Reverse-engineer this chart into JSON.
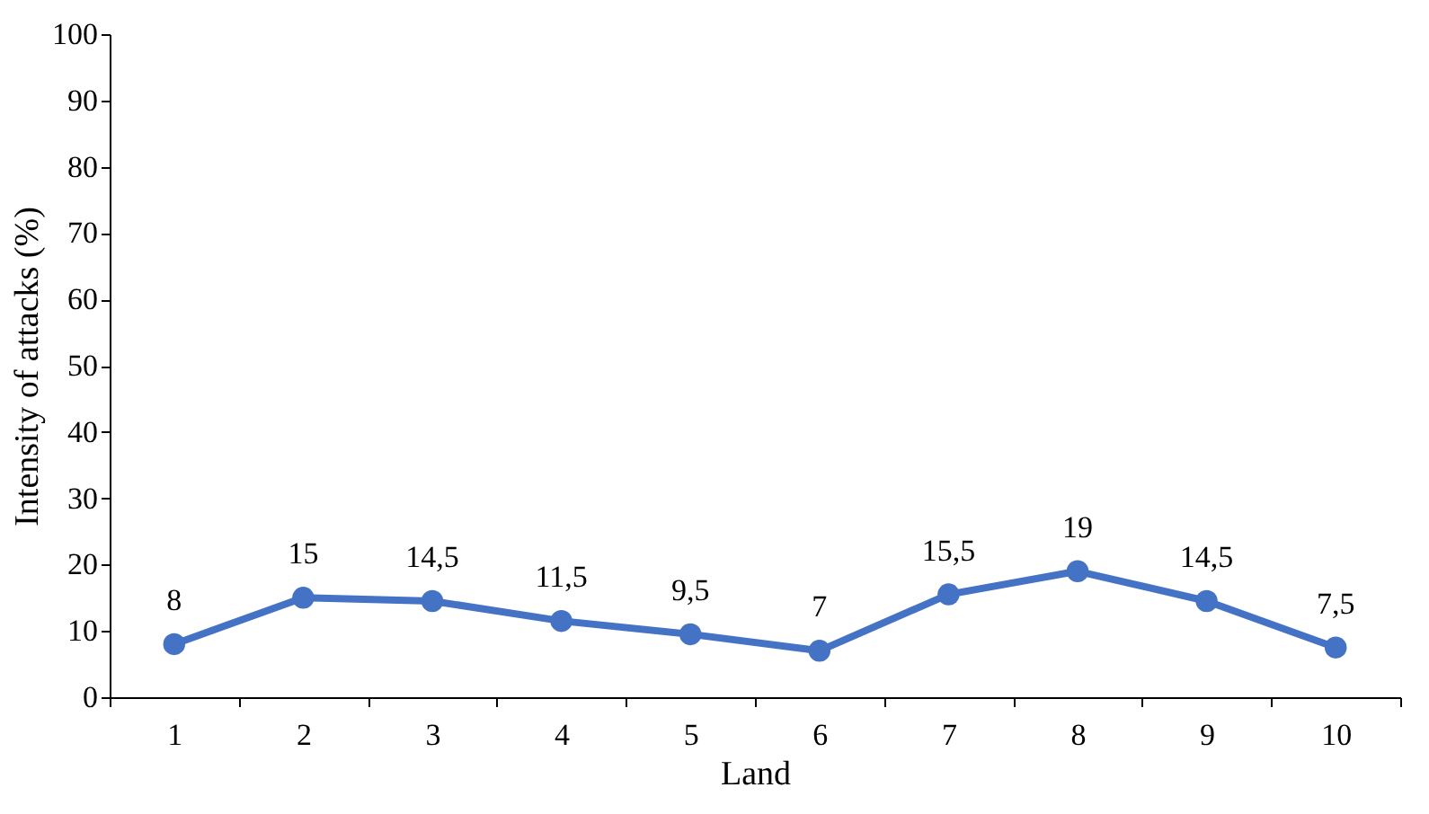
{
  "chart_data": {
    "type": "line",
    "xlabel": "Land",
    "ylabel": "Intensity of attacks (%)",
    "categories": [
      "1",
      "2",
      "3",
      "4",
      "5",
      "6",
      "7",
      "8",
      "9",
      "10"
    ],
    "series": [
      {
        "color": "#4472c4",
        "values": [
          8,
          15,
          14.5,
          11.5,
          9.5,
          7,
          15.5,
          19,
          14.5,
          7.5
        ],
        "value_labels": [
          "8",
          "15",
          "14,5",
          "11,5",
          "9,5",
          "7",
          "15,5",
          "19",
          "14,5",
          "7,5"
        ]
      }
    ],
    "ylim": [
      0,
      100
    ],
    "yticks": [
      0,
      10,
      20,
      30,
      40,
      50,
      60,
      70,
      80,
      90,
      100
    ],
    "grid": false,
    "marker": "circle",
    "line_style": "solid"
  }
}
